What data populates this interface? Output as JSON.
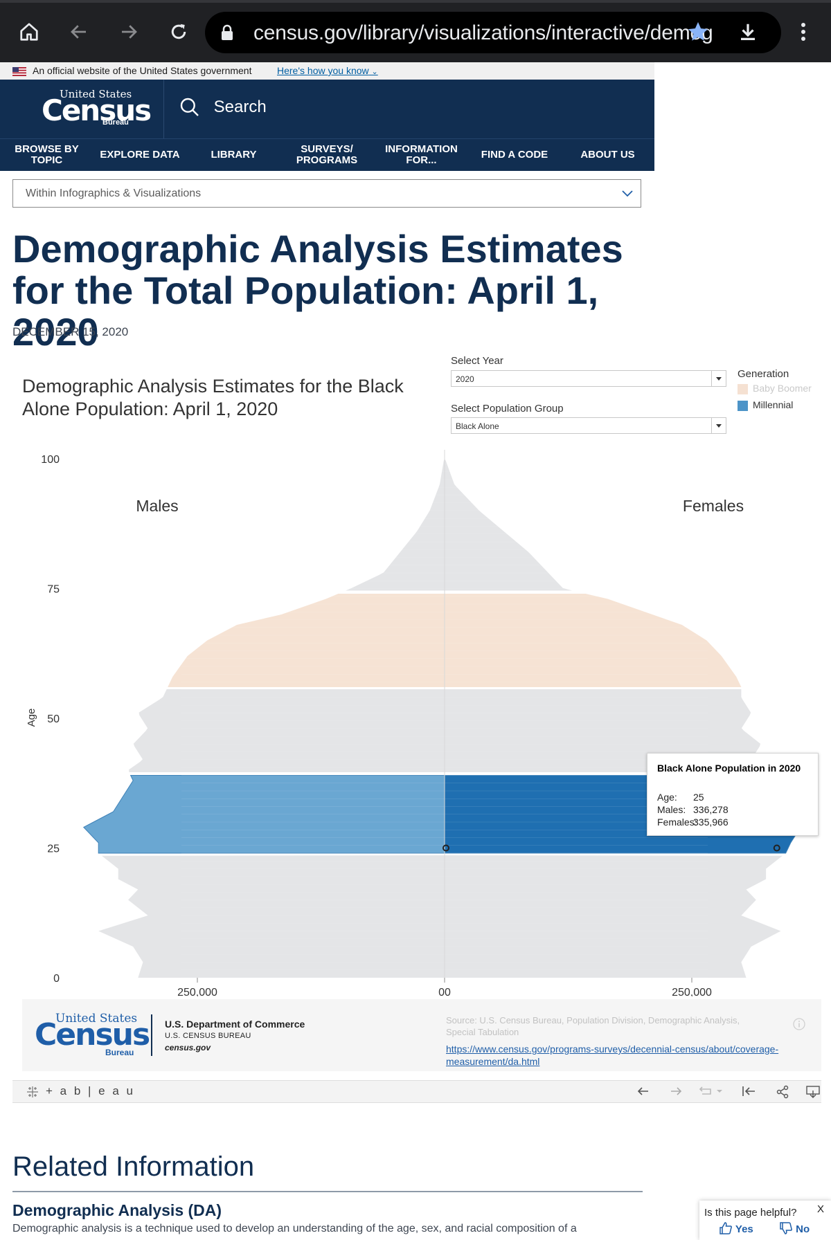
{
  "browser": {
    "url": "census.gov/library/visualizations/interactive/demog"
  },
  "banner": {
    "text": "An official website of the United States government",
    "link": "Here's how you know"
  },
  "header": {
    "logo_top": "United States",
    "logo_main": "Census",
    "logo_bottom": "Bureau",
    "search_label": "Search",
    "nav": [
      {
        "label": "BROWSE BY TOPIC"
      },
      {
        "label": "EXPLORE DATA"
      },
      {
        "label": "LIBRARY"
      },
      {
        "label": "SURVEYS/ PROGRAMS"
      },
      {
        "label": "INFORMATION FOR..."
      },
      {
        "label": "FIND A CODE"
      },
      {
        "label": "ABOUT US"
      }
    ]
  },
  "within": {
    "label": "Within Infographics & Visualizations"
  },
  "page": {
    "title": "Demographic Analysis Estimates for the Total Population: April 1, 2020",
    "date": "DECEMBER 15, 2020"
  },
  "viz": {
    "title": "Demographic Analysis Estimates for the Black Alone Population: April 1, 2020",
    "select_year_label": "Select Year",
    "select_year_value": "2020",
    "select_group_label": "Select Population Group",
    "select_group_value": "Black Alone",
    "legend_title": "Generation",
    "legend": [
      {
        "label": "Baby Boomer",
        "color": "#f5e1d2"
      },
      {
        "label": "Millennial",
        "color": "#4d94c8"
      }
    ],
    "tooltip": {
      "title": "Black Alone Population in 2020",
      "age_label": "Age:",
      "age": "25",
      "males_label": "Males:",
      "males": "336,278",
      "females_label": "Females:",
      "females": "335,966"
    },
    "footer": {
      "dept": "U.S. Department of Commerce",
      "bureau": "U.S. CENSUS BUREAU",
      "site": "census.gov",
      "source": "Source: U.S. Census Bureau, Population Division, Demographic Analysis, Special Tabulation",
      "link": "https://www.census.gov/programs-surveys/decennial-census/about/coverage-measurement/da.html"
    },
    "toolbar_brand": "+ a b | e a u"
  },
  "chart_data": {
    "type": "area",
    "title": "Demographic Analysis Estimates for the Black Alone Population: April 1, 2020",
    "ylabel": "Age",
    "xlabel": "",
    "side_labels": [
      "Males",
      "Females"
    ],
    "x_ticks": [
      "250,000",
      "00",
      "250,000"
    ],
    "y_ticks": [
      "0",
      "25",
      "50",
      "75",
      "100"
    ],
    "xlim": [
      -360000,
      360000
    ],
    "ylim": [
      0,
      100
    ],
    "colors": {
      "other": "#e3e4e6",
      "baby_boomer": "#f5e1d2",
      "millennial_male": "#6aa7d2",
      "millennial_female": "#1f6fb1"
    },
    "series": [
      {
        "name": "Males",
        "points": [
          [
            0,
            310000
          ],
          [
            3,
            305000
          ],
          [
            6,
            315000
          ],
          [
            9,
            350000
          ],
          [
            12,
            300000
          ],
          [
            15,
            320000
          ],
          [
            17,
            310000
          ],
          [
            19,
            330000
          ],
          [
            21,
            330000
          ],
          [
            24,
            350000
          ],
          [
            26,
            350000
          ],
          [
            29,
            365000
          ],
          [
            32,
            335000
          ],
          [
            35,
            325000
          ],
          [
            38,
            315000
          ],
          [
            40,
            320000
          ],
          [
            42,
            305000
          ],
          [
            45,
            315000
          ],
          [
            48,
            300000
          ],
          [
            51,
            310000
          ],
          [
            54,
            285000
          ],
          [
            56,
            280000
          ],
          [
            58,
            275000
          ],
          [
            62,
            260000
          ],
          [
            65,
            240000
          ],
          [
            68,
            210000
          ],
          [
            70,
            165000
          ],
          [
            73,
            120000
          ],
          [
            75,
            95000
          ],
          [
            78,
            62000
          ],
          [
            82,
            45000
          ],
          [
            86,
            28000
          ],
          [
            90,
            15000
          ],
          [
            95,
            5000
          ],
          [
            100,
            500
          ]
        ]
      },
      {
        "name": "Females",
        "points": [
          [
            0,
            305000
          ],
          [
            3,
            300000
          ],
          [
            6,
            310000
          ],
          [
            9,
            340000
          ],
          [
            12,
            300000
          ],
          [
            15,
            315000
          ],
          [
            17,
            305000
          ],
          [
            19,
            325000
          ],
          [
            21,
            325000
          ],
          [
            24,
            345000
          ],
          [
            26,
            350000
          ],
          [
            29,
            360000
          ],
          [
            32,
            340000
          ],
          [
            35,
            330000
          ],
          [
            38,
            325000
          ],
          [
            40,
            330000
          ],
          [
            42,
            310000
          ],
          [
            45,
            320000
          ],
          [
            48,
            300000
          ],
          [
            51,
            310000
          ],
          [
            54,
            300000
          ],
          [
            56,
            300000
          ],
          [
            58,
            295000
          ],
          [
            62,
            280000
          ],
          [
            65,
            265000
          ],
          [
            68,
            240000
          ],
          [
            70,
            210000
          ],
          [
            73,
            165000
          ],
          [
            75,
            120000
          ],
          [
            78,
            105000
          ],
          [
            82,
            85000
          ],
          [
            86,
            60000
          ],
          [
            90,
            35000
          ],
          [
            95,
            10000
          ],
          [
            100,
            500
          ]
        ]
      }
    ],
    "generation_bands": [
      {
        "name": "Baby Boomer",
        "ages": [
          56,
          74
        ]
      },
      {
        "name": "Millennial",
        "ages": [
          24,
          39
        ]
      }
    ]
  }
}
